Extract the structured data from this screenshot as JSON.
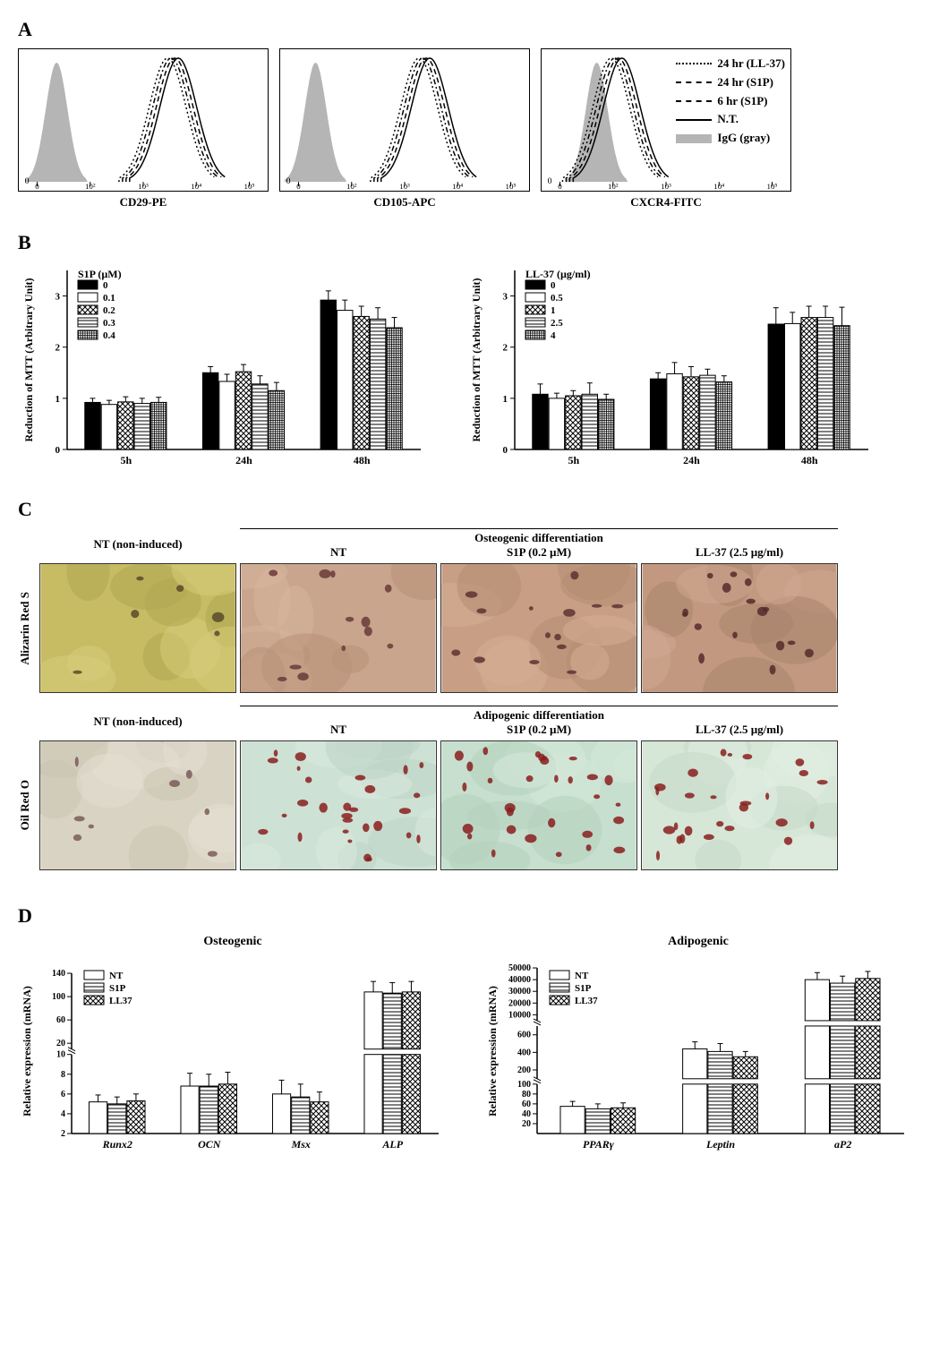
{
  "panelA": {
    "label": "A",
    "plots": [
      {
        "axis_label": "CD29-PE",
        "ticks": [
          "0",
          "10²",
          "10³",
          "10⁴",
          "10⁵"
        ],
        "main_peak_x": 0.62,
        "igG_peak_x": 0.15
      },
      {
        "axis_label": "CD105-APC",
        "ticks": [
          "0",
          "10²",
          "10³",
          "10⁴",
          "10⁵"
        ],
        "main_peak_x": 0.58,
        "igG_peak_x": 0.14
      },
      {
        "axis_label": "CXCR4-FITC",
        "ticks": [
          "0",
          "10²",
          "10³",
          "10⁴",
          "10⁵"
        ],
        "main_peak_x": 0.3,
        "igG_peak_x": 0.22
      }
    ],
    "legend": {
      "items": [
        {
          "label": "24 hr (LL-37)",
          "style": "dotted"
        },
        {
          "label": "24 hr (S1P)",
          "style": "dashdot"
        },
        {
          "label": "6 hr (S1P)",
          "style": "dashed"
        },
        {
          "label": "N.T.",
          "style": "solid"
        },
        {
          "label": "IgG (gray)",
          "style": "fill-gray"
        }
      ]
    }
  },
  "panelB": {
    "label": "B",
    "charts": [
      {
        "ylabel": "Reduction of MTT (Arbitrary Unit)",
        "legend_title": "S1P (µM)",
        "legend_items": [
          "0",
          "0.1",
          "0.2",
          "0.3",
          "0.4"
        ],
        "legend_fills": [
          "solid-black",
          "white",
          "crosshatch",
          "hstripe",
          "grid"
        ],
        "x_categories": [
          "5h",
          "24h",
          "48h"
        ],
        "ylim": [
          0,
          3.5
        ],
        "ytick_step": 1,
        "data": [
          [
            0.92,
            0.88,
            0.93,
            0.9,
            0.92
          ],
          [
            1.5,
            1.33,
            1.52,
            1.28,
            1.15
          ],
          [
            2.92,
            2.72,
            2.6,
            2.55,
            2.38
          ]
        ],
        "errors": [
          [
            0.08,
            0.08,
            0.1,
            0.1,
            0.1
          ],
          [
            0.12,
            0.14,
            0.14,
            0.16,
            0.16
          ],
          [
            0.18,
            0.2,
            0.2,
            0.22,
            0.2
          ]
        ]
      },
      {
        "ylabel": "Reduction of MTT (Arbitrary Unit)",
        "legend_title": "LL-37 (µg/ml)",
        "legend_items": [
          "0",
          "0.5",
          "1",
          "2.5",
          "4"
        ],
        "legend_fills": [
          "solid-black",
          "white",
          "crosshatch",
          "hstripe",
          "grid"
        ],
        "x_categories": [
          "5h",
          "24h",
          "48h"
        ],
        "ylim": [
          0,
          3.5
        ],
        "ytick_step": 1,
        "data": [
          [
            1.08,
            1.0,
            1.05,
            1.08,
            0.98
          ],
          [
            1.38,
            1.48,
            1.42,
            1.45,
            1.32
          ],
          [
            2.45,
            2.46,
            2.58,
            2.58,
            2.42
          ]
        ],
        "errors": [
          [
            0.2,
            0.1,
            0.1,
            0.22,
            0.1
          ],
          [
            0.12,
            0.22,
            0.2,
            0.12,
            0.12
          ],
          [
            0.32,
            0.22,
            0.22,
            0.22,
            0.36
          ]
        ]
      }
    ],
    "bar_colors": {
      "solid-black": "#000000",
      "white": "#ffffff",
      "crosshatch": "pattern-cross",
      "hstripe": "pattern-hstripe",
      "grid": "pattern-grid"
    }
  },
  "panelC": {
    "label": "C",
    "rows": [
      {
        "stain_label": "Alizarin Red S",
        "section_title": "Osteogenic differentiation",
        "cells": [
          {
            "label": "NT (non-induced)",
            "bg_colors": [
              "#c7bb63",
              "#b1a753",
              "#d6cc7a"
            ],
            "spots": 6,
            "spot_color": "#5a4a2a"
          },
          {
            "label": "NT",
            "bg_colors": [
              "#c8a58c",
              "#b89278",
              "#d7b49c"
            ],
            "spots": 12,
            "spot_color": "#6a3a3a"
          },
          {
            "label": "S1P (0.2 µM)",
            "bg_colors": [
              "#c89f85",
              "#b58c72",
              "#d4ad94"
            ],
            "spots": 14,
            "spot_color": "#5d3232"
          },
          {
            "label": "LL-37 (2.5 µg/ml)",
            "bg_colors": [
              "#c29980",
              "#a9836c",
              "#cfa88f"
            ],
            "spots": 16,
            "spot_color": "#552c2c"
          }
        ]
      },
      {
        "stain_label": "Oil Red O",
        "section_title": "Adipogenic differentiation",
        "cells": [
          {
            "label": "NT (non-induced)",
            "bg_colors": [
              "#d9d3c3",
              "#cbc4b2",
              "#e4dfd1"
            ],
            "spots": 8,
            "spot_color": "#7a5a5a"
          },
          {
            "label": "NT",
            "bg_colors": [
              "#cde2d4",
              "#bcd4c4",
              "#dbeadf"
            ],
            "spots": 28,
            "spot_color": "#8a1f1f"
          },
          {
            "label": "S1P (0.2 µM)",
            "bg_colors": [
              "#c6dfce",
              "#b5d1be",
              "#d5e8da"
            ],
            "spots": 30,
            "spot_color": "#8a1f1f"
          },
          {
            "label": "LL-37 (2.5 µg/ml)",
            "bg_colors": [
              "#d6e6d7",
              "#c6d9c7",
              "#e2efe3"
            ],
            "spots": 26,
            "spot_color": "#8a1f1f"
          }
        ]
      }
    ]
  },
  "panelD": {
    "label": "D",
    "charts": [
      {
        "title": "Osteogenic",
        "ylabel": "Relative expression (mRNA)",
        "legend_items": [
          "NT",
          "S1P",
          "LL37"
        ],
        "legend_fills": [
          "white",
          "hstripe",
          "crosshatch"
        ],
        "x_categories": [
          "Runx2",
          "OCN",
          "Msx",
          "ALP"
        ],
        "break_low": [
          2,
          10
        ],
        "break_high": [
          10,
          140
        ],
        "yticks_low": [
          2,
          4,
          6,
          8,
          10
        ],
        "yticks_high": [
          20,
          60,
          100,
          140
        ],
        "data": [
          [
            5.2,
            5.0,
            5.3
          ],
          [
            6.8,
            6.8,
            7.0
          ],
          [
            6.0,
            5.7,
            5.2
          ],
          [
            108,
            106,
            108
          ]
        ],
        "errors": [
          [
            0.7,
            0.7,
            0.7
          ],
          [
            1.3,
            1.2,
            1.2
          ],
          [
            1.4,
            1.3,
            1.0
          ],
          [
            18,
            18,
            18
          ]
        ]
      },
      {
        "title": "Adipogenic",
        "ylabel": "Relative expression (mRNA)",
        "legend_items": [
          "NT",
          "S1P",
          "LL37"
        ],
        "legend_fills": [
          "white",
          "hstripe",
          "crosshatch"
        ],
        "x_categories": [
          "PPARγ",
          "Leptin",
          "aP2"
        ],
        "break_low": [
          0,
          100
        ],
        "break_mid": [
          100,
          700
        ],
        "break_high": [
          5000,
          50000
        ],
        "yticks_low": [
          20,
          40,
          60,
          80,
          100
        ],
        "yticks_mid": [
          200,
          400,
          600
        ],
        "yticks_high": [
          10000,
          20000,
          30000,
          40000,
          50000
        ],
        "data": [
          [
            55,
            50,
            52
          ],
          [
            440,
            410,
            350
          ],
          [
            40000,
            37000,
            41000
          ]
        ],
        "errors": [
          [
            10,
            10,
            10
          ],
          [
            80,
            90,
            60
          ],
          [
            6000,
            6000,
            6000
          ]
        ]
      }
    ]
  },
  "styling": {
    "background": "#ffffff",
    "text_color": "#000000",
    "axis_fontsize": 11,
    "label_fontsize": 13,
    "panel_label_fontsize": 22,
    "bar_border": "#000000",
    "error_bar_color": "#000000",
    "flow_igG_fill": "#b5b5b5",
    "flow_line_color": "#000000"
  }
}
